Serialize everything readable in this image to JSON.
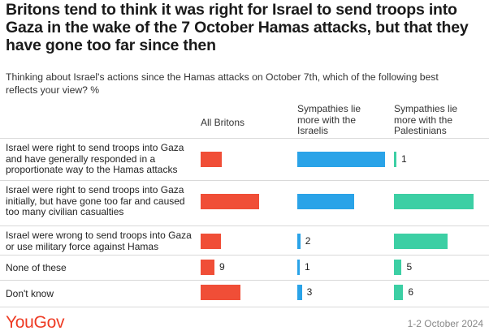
{
  "header": {
    "title": "Britons tend to think it was right for Israel to send troops into Gaza in the wake of the 7 October Hamas attacks, but that they have gone too far since then",
    "subtitle": "Thinking about Israel's actions since the Hamas attacks on October 7th, which of the following best reflects your view? %"
  },
  "footer": {
    "logo": "YouGov",
    "date": "1-2 October 2024"
  },
  "colors": {
    "all": "#f04e37",
    "israelis": "#2aa3e8",
    "palestinians": "#3ccfa4",
    "logo": "#ee3b24"
  },
  "chart_data": {
    "type": "bar",
    "orientation": "horizontal",
    "unit": "%",
    "title": "Britons tend to think it was right for Israel to send troops into Gaza in the wake of the 7 October Hamas attacks, but that they have gone too far since then",
    "categories": [
      "Israel were right to send troops into Gaza and have generally responded in a proportionate way to the Hamas attacks",
      "Israel were right to send troops into Gaza initially, but have gone too far and caused too many civilian casualties",
      "Israel were wrong to send troops into Gaza or use military force against Hamas",
      "None of these",
      "Don't know"
    ],
    "series": [
      {
        "name": "All Britons",
        "values": [
          14,
          38,
          13,
          9,
          26
        ]
      },
      {
        "name": "Sympathies lie more with the Israelis",
        "values": [
          57,
          37,
          2,
          1,
          3
        ]
      },
      {
        "name": "Sympathies lie more with the Palestinians",
        "values": [
          1,
          52,
          35,
          5,
          6
        ]
      }
    ]
  }
}
